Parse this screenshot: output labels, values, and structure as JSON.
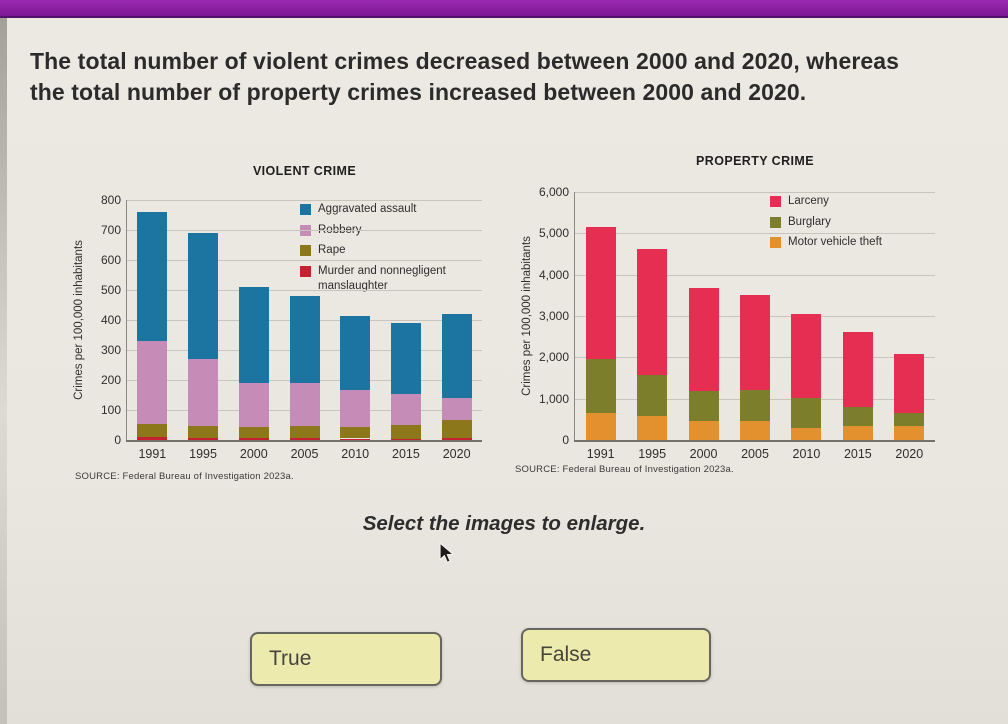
{
  "app": {
    "question": {
      "line1": "The total number of violent crimes decreased between 2000 and 2020, whereas",
      "line2": "the total number of property crimes increased between 2000 and 2020."
    },
    "instruction": "Select the images to enlarge.",
    "answer_buttons": [
      {
        "label": "True"
      },
      {
        "label": "False"
      }
    ]
  },
  "colors": {
    "top_bar": "#8a1fa0",
    "background": "#eae7e0",
    "button_bg": "#edeaad",
    "button_border": "#66665e",
    "gridline": "#c7c5be",
    "aggravated_assault": "#1b75a0",
    "robbery": "#c68cb8",
    "rape": "#8c781b",
    "murder": "#c52130",
    "larceny": "#e62e52",
    "burglary": "#7c7e2c",
    "motor_vehicle_theft": "#e2912e"
  },
  "chart_data": [
    {
      "type": "bar",
      "stacked": true,
      "title": "VIOLENT CRIME",
      "xlabel": "",
      "ylabel": "Crimes per 100,000 inhabitants",
      "source": "SOURCE: Federal Bureau of Investigation 2023a.",
      "categories": [
        "1991",
        "1995",
        "2000",
        "2005",
        "2010",
        "2015",
        "2020"
      ],
      "ylim": [
        0,
        800
      ],
      "yticks": [
        0,
        100,
        200,
        300,
        400,
        500,
        600,
        700,
        800
      ],
      "ytick_labels": [
        "0",
        "100",
        "200",
        "300",
        "400",
        "500",
        "600",
        "700",
        "800"
      ],
      "grid": true,
      "legend_position": "top-right",
      "series": [
        {
          "name": "Murder and nonnegligent manslaughter",
          "color": "#c52130",
          "values": [
            10,
            8,
            6,
            6,
            5,
            5,
            7
          ]
        },
        {
          "name": "Rape",
          "color": "#8c781b",
          "values": [
            45,
            40,
            36,
            40,
            39,
            45,
            61
          ]
        },
        {
          "name": "Robbery",
          "color": "#c68cb8",
          "values": [
            275,
            222,
            148,
            144,
            123,
            105,
            72
          ]
        },
        {
          "name": "Aggravated assault",
          "color": "#1b75a0",
          "values": [
            430,
            420,
            320,
            290,
            248,
            235,
            280
          ]
        }
      ],
      "stack_totals": [
        760,
        690,
        510,
        480,
        415,
        390,
        420
      ]
    },
    {
      "type": "bar",
      "stacked": true,
      "title": "PROPERTY CRIME",
      "xlabel": "",
      "ylabel": "Crimes per 100,000 inhabitants",
      "source": "SOURCE: Federal Bureau of Investigation 2023a.",
      "categories": [
        "1991",
        "1995",
        "2000",
        "2005",
        "2010",
        "2015",
        "2020"
      ],
      "ylim": [
        0,
        6000
      ],
      "yticks": [
        0,
        1000,
        2000,
        3000,
        4000,
        5000,
        6000
      ],
      "ytick_labels": [
        "0",
        "1,000",
        "2,000",
        "3,000",
        "4,000",
        "5,000",
        "6,000"
      ],
      "grid": true,
      "legend_position": "top-right",
      "series": [
        {
          "name": "Motor vehicle theft",
          "color": "#e2912e",
          "values": [
            660,
            580,
            450,
            460,
            300,
            330,
            350
          ]
        },
        {
          "name": "Burglary",
          "color": "#7c7e2c",
          "values": [
            1290,
            1000,
            740,
            760,
            720,
            480,
            310
          ]
        },
        {
          "name": "Larceny",
          "color": "#e62e52",
          "values": [
            3200,
            3040,
            2490,
            2290,
            2040,
            1810,
            1430
          ]
        }
      ],
      "stack_totals": [
        5150,
        4620,
        3680,
        3510,
        3060,
        2620,
        2090
      ]
    }
  ]
}
